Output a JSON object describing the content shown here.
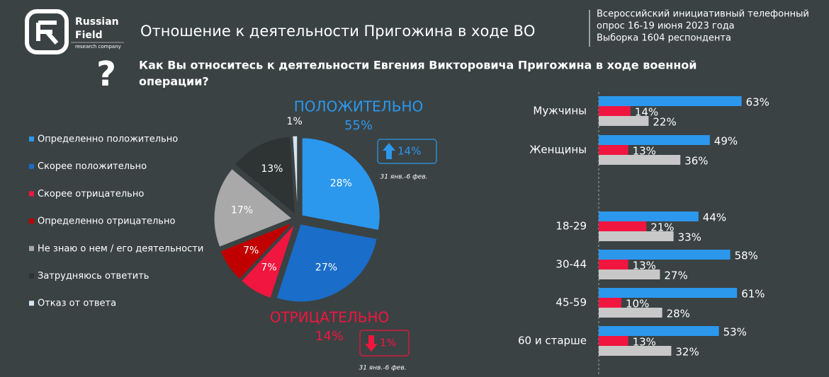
{
  "header": {
    "brand_line1": "Russian",
    "brand_line2": "Field",
    "brand_line3": "research company",
    "title": "Отношение к деятельности Пригожина в ходе ВО",
    "note_line1": "Всероссийский инициативный телефонный",
    "note_line2": "опрос 16-19 июня 2023 года",
    "note_line3": "Выборка 1604 респондента"
  },
  "question_line1": "Как Вы относитесь к деятельности Евгения Викторовича Пригожина в ходе военной",
  "question_line2": "операции?",
  "chart_data": [
    {
      "type": "pie",
      "categories": [
        "Определенно положительно",
        "Скорее положительно",
        "Скорее отрицательно",
        "Определенно отрицательно",
        "Не знаю о нем / его деятельности",
        "Затрудняюсь ответить",
        "Отказ от ответа"
      ],
      "values": [
        28,
        27,
        7,
        7,
        17,
        13,
        1
      ],
      "value_labels": [
        "28%",
        "27%",
        "7%",
        "7%",
        "17%",
        "13%",
        "1%"
      ],
      "colors": [
        "#2b98ee",
        "#1a6dc8",
        "#f0163f",
        "#c00000",
        "#a9a9a9",
        "#2e3434",
        "#d6e4f0"
      ],
      "annotations": [
        {
          "text": "ПОЛОЖИТЕЛЬНО",
          "value": 55,
          "value_label": "55%",
          "color": "#2b98ee",
          "change": {
            "value": 14,
            "label": "14%",
            "direction": "up",
            "period": "31 янв.-6 фев."
          }
        },
        {
          "text": "ОТРИЦАТЕЛЬНО",
          "value": 14,
          "value_label": "14%",
          "color": "#f0163f",
          "change": {
            "value": 1,
            "label": "1%",
            "direction": "down",
            "period": "31 янв.-6 фев."
          }
        }
      ]
    },
    {
      "type": "bar",
      "orientation": "horizontal",
      "categories": [
        "Мужчины",
        "Женщины",
        "18-29",
        "30-44",
        "45-59",
        "60 и старше"
      ],
      "xlim": [
        0,
        100
      ],
      "series": [
        {
          "color": "#2b98ee",
          "values": [
            63,
            49,
            44,
            58,
            61,
            53
          ],
          "value_labels": [
            "63%",
            "49%",
            "44%",
            "58%",
            "61%",
            "53%"
          ]
        },
        {
          "color": "#f0163f",
          "values": [
            14,
            13,
            21,
            13,
            10,
            13
          ],
          "value_labels": [
            "14%",
            "13%",
            "21%",
            "13%",
            "10%",
            "13%"
          ]
        },
        {
          "color": "#c8c8c8",
          "values": [
            22,
            36,
            33,
            27,
            28,
            32
          ],
          "value_labels": [
            "22%",
            "36%",
            "33%",
            "27%",
            "28%",
            "32%"
          ]
        }
      ]
    }
  ]
}
